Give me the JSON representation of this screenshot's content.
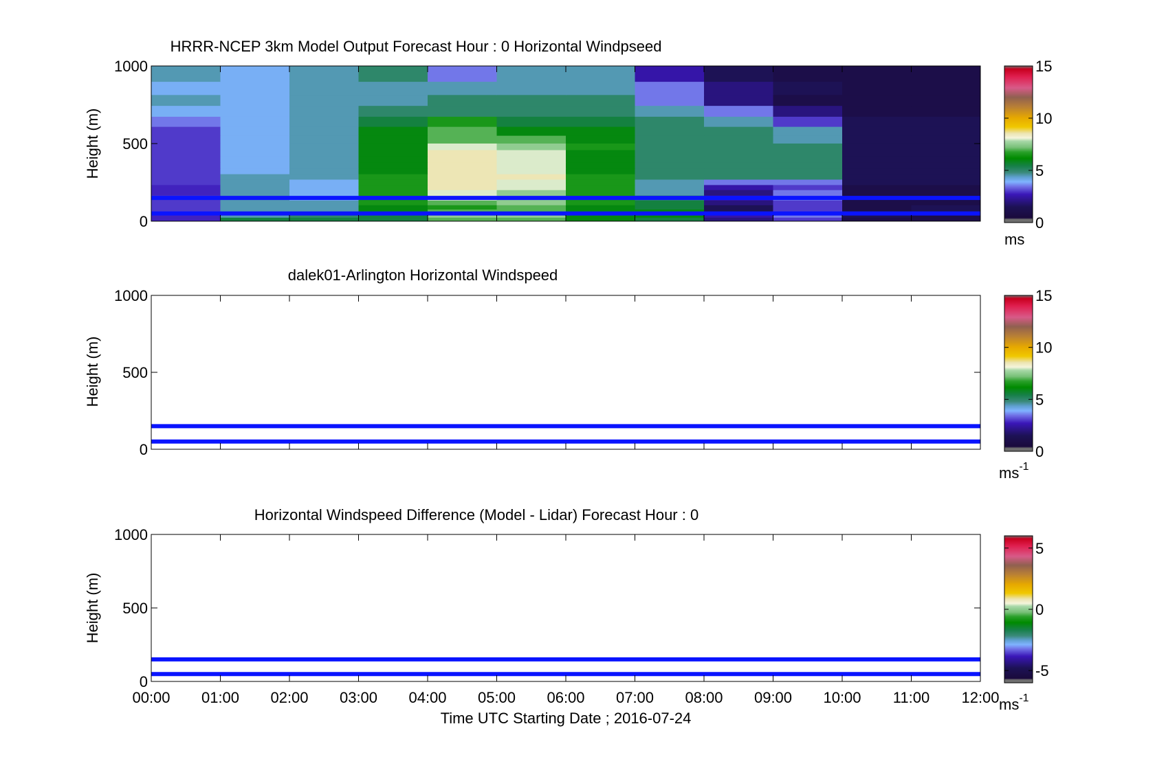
{
  "figure": {
    "xlabel": "Time UTC  Starting Date ; 2016-07-24",
    "x_ticks": [
      "00:00",
      "01:00",
      "02:00",
      "03:00",
      "04:00",
      "05:00",
      "06:00",
      "07:00",
      "08:00",
      "09:00",
      "10:00",
      "11:00",
      "12:00"
    ]
  },
  "chart_data": [
    {
      "type": "heatmap",
      "title": "HRRR-NCEP 3km Model Output   Forecast Hour : 0 Horizontal Windpseed",
      "ylabel": "Height (m)",
      "ylim": [
        0,
        1000
      ],
      "y_ticks": [
        "0",
        "500",
        "1000"
      ],
      "xlim": [
        0,
        12
      ],
      "colorbar": {
        "ticks": [
          "0",
          "5",
          "10",
          "15"
        ],
        "range": [
          0,
          15
        ],
        "unit": "ms",
        "unit_sup": ""
      },
      "height_levels": [
        10,
        40,
        65,
        90,
        120,
        150,
        185,
        220,
        250,
        290,
        320,
        360,
        400,
        440,
        480,
        525,
        580,
        640,
        710,
        780,
        850,
        950
      ],
      "times": [
        0,
        1,
        2,
        3,
        4,
        5,
        6,
        7,
        8,
        9,
        10,
        11
      ],
      "values": [
        [
          2.8,
          5.5,
          5.5,
          5.5,
          7,
          7,
          6,
          5.5,
          2,
          3,
          1,
          1
        ],
        [
          2.8,
          4.5,
          5,
          5.5,
          7.5,
          7.5,
          6,
          6,
          2.5,
          3.5,
          1.5,
          1
        ],
        [
          3,
          4.5,
          4.5,
          6,
          7,
          7,
          6,
          6,
          1.5,
          3,
          1,
          1.5
        ],
        [
          3,
          4.5,
          4.5,
          6,
          6.5,
          7,
          6,
          5.5,
          1.5,
          3,
          1,
          1.5
        ],
        [
          3,
          4.5,
          4.5,
          6.5,
          7,
          7.5,
          6.5,
          5.5,
          2,
          3,
          1,
          1
        ],
        [
          3,
          4.5,
          4,
          6.5,
          8,
          7.5,
          6.5,
          5,
          2.5,
          3.5,
          1,
          1
        ],
        [
          2.8,
          4.5,
          4,
          6.5,
          8,
          7.5,
          6.5,
          4.5,
          2,
          3.5,
          1,
          1
        ],
        [
          2.8,
          4.5,
          4,
          6.5,
          8.5,
          8,
          6.5,
          4.5,
          2.5,
          3,
          1,
          1
        ],
        [
          3,
          4.5,
          4,
          6.5,
          8.5,
          8,
          6.5,
          4.5,
          3.5,
          3.5,
          1.5,
          1.5
        ],
        [
          3,
          4.5,
          4.5,
          6.5,
          8.5,
          8.5,
          6.5,
          5,
          5,
          5,
          1.5,
          1.5
        ],
        [
          3,
          4,
          4.5,
          6,
          8.5,
          8,
          6,
          5,
          5,
          5,
          1.5,
          1.5
        ],
        [
          3,
          4,
          4.5,
          6,
          8.5,
          8,
          6,
          5,
          5,
          5,
          1.5,
          1.5
        ],
        [
          3,
          4,
          4.5,
          6,
          8.5,
          8,
          6,
          5,
          5,
          5,
          1.5,
          1.5
        ],
        [
          3,
          4,
          4.5,
          6,
          8.5,
          8,
          6,
          5,
          5,
          5,
          1.5,
          1.5
        ],
        [
          3,
          4,
          4.5,
          6,
          8,
          7.5,
          6.5,
          5,
          5,
          5,
          1.5,
          1.5
        ],
        [
          3,
          4,
          4.5,
          6,
          7,
          7,
          6,
          5,
          5,
          4.5,
          1.5,
          1.5
        ],
        [
          3,
          4,
          4.5,
          6,
          7,
          6,
          6,
          5,
          5,
          4.5,
          1.5,
          1.5
        ],
        [
          3.5,
          4,
          4.5,
          5.5,
          6.5,
          5.5,
          5.5,
          5,
          4.5,
          3,
          1.5,
          1.5
        ],
        [
          4,
          4,
          4.5,
          5,
          5,
          5,
          5,
          4.5,
          3.5,
          2,
          1,
          1
        ],
        [
          4.5,
          4,
          4.5,
          4.5,
          5,
          5,
          5,
          3.5,
          2,
          1,
          1,
          1
        ],
        [
          4,
          4,
          4.5,
          4.5,
          4.5,
          4.5,
          4.5,
          3.5,
          2,
          1.5,
          1,
          1
        ],
        [
          4.5,
          4,
          4.5,
          5,
          3.5,
          4.5,
          4.5,
          2.5,
          1.5,
          1,
          1,
          1
        ]
      ],
      "overlay_lines_height": [
        150,
        50
      ]
    },
    {
      "type": "heatmap",
      "title": "dalek01-Arlington  Horizontal Windspeed",
      "ylabel": "Height (m)",
      "ylim": [
        0,
        1000
      ],
      "y_ticks": [
        "0",
        "500",
        "1000"
      ],
      "xlim": [
        0,
        12
      ],
      "colorbar": {
        "ticks": [
          "0",
          "5",
          "10",
          "15"
        ],
        "range": [
          0,
          15
        ],
        "unit": "ms",
        "unit_sup": "-1"
      },
      "values": [],
      "overlay_lines_height": [
        150,
        50
      ]
    },
    {
      "type": "heatmap",
      "title": "Horizontal Windspeed Difference (Model - Lidar) Forecast Hour : 0",
      "ylabel": "Height (m)",
      "ylim": [
        0,
        1000
      ],
      "y_ticks": [
        "0",
        "500",
        "1000"
      ],
      "xlim": [
        0,
        12
      ],
      "colorbar": {
        "ticks": [
          "-5",
          "0",
          "5"
        ],
        "range": [
          -6,
          6
        ],
        "unit": "ms",
        "unit_sup": "-1"
      },
      "values": [],
      "overlay_lines_height": [
        150,
        50
      ]
    }
  ],
  "colors": {
    "overlay_line": "#0a14ff",
    "colormap": [
      [
        0.0,
        "#6f6f6f"
      ],
      [
        0.02,
        "#6f6f6f"
      ],
      [
        0.03,
        "#1a0a3c"
      ],
      [
        0.1,
        "#1d1255"
      ],
      [
        0.18,
        "#3a16b8"
      ],
      [
        0.23,
        "#7070e6"
      ],
      [
        0.26,
        "#7fb3ff"
      ],
      [
        0.29,
        "#5fa0d0"
      ],
      [
        0.32,
        "#3a8a7a"
      ],
      [
        0.36,
        "#17804a"
      ],
      [
        0.41,
        "#008a00"
      ],
      [
        0.45,
        "#2aa02a"
      ],
      [
        0.48,
        "#78c078"
      ],
      [
        0.52,
        "#a8d8a8"
      ],
      [
        0.54,
        "#f5f5dc"
      ],
      [
        0.57,
        "#ece4b0"
      ],
      [
        0.61,
        "#f0c800"
      ],
      [
        0.67,
        "#e6a800"
      ],
      [
        0.74,
        "#b87f36"
      ],
      [
        0.8,
        "#906050"
      ],
      [
        0.86,
        "#d85a88"
      ],
      [
        0.93,
        "#e02050"
      ],
      [
        0.98,
        "#c8001e"
      ],
      [
        1.0,
        "#6f6f6f"
      ]
    ]
  }
}
